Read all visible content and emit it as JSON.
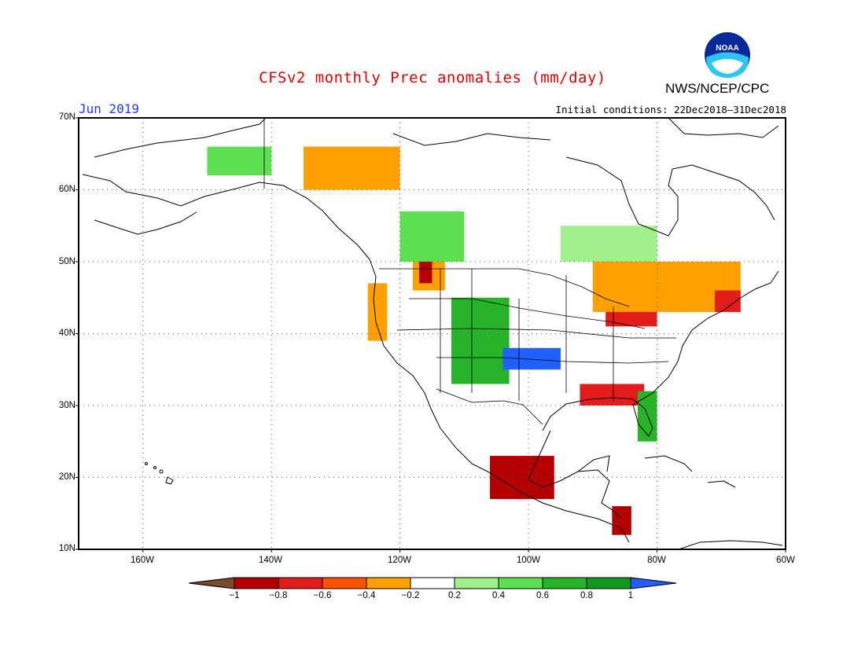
{
  "header": {
    "title": "CFSv2 monthly Prec anomalies (mm/day)",
    "agency": "NWS/NCEP/CPC",
    "valid_month": "Jun 2019",
    "initial_conditions": "Initial conditions: 22Dec2018–31Dec2018",
    "logo_text": "NOAA"
  },
  "map": {
    "lat_labels": [
      "70N",
      "60N",
      "50N",
      "40N",
      "30N",
      "20N",
      "10N"
    ],
    "lon_labels": [
      "160W",
      "140W",
      "120W",
      "100W",
      "80W",
      "60W"
    ]
  },
  "colorbar": {
    "labels": [
      "−1",
      "−0.8",
      "−0.6",
      "−0.4",
      "−0.2",
      "0.2",
      "0.4",
      "0.6",
      "0.8",
      "1"
    ],
    "colors": [
      "#7a4a30",
      "#b40000",
      "#e21b1b",
      "#ff5000",
      "#ffa000",
      "#ffffff",
      "#a0f08c",
      "#5ce050",
      "#28b428",
      "#0f9a1e",
      "#2060ff"
    ]
  },
  "anomalies": [
    {
      "region": "Pacific Northwest coast",
      "lat": [
        39,
        47
      ],
      "lon": [
        -125,
        -122
      ],
      "color": "#ffa000"
    },
    {
      "region": "Northern Idaho / Montana",
      "lat": [
        46,
        50
      ],
      "lon": [
        -118,
        -113
      ],
      "color": "#ffa000"
    },
    {
      "region": "Northern Idaho core",
      "lat": [
        47,
        50
      ],
      "lon": [
        -117,
        -115
      ],
      "color": "#b40000"
    },
    {
      "region": "Central Rockies",
      "lat": [
        33,
        45
      ],
      "lon": [
        -112,
        -103
      ],
      "color": "#28b428"
    },
    {
      "region": "Southern Plains",
      "lat": [
        35,
        38
      ],
      "lon": [
        -104,
        -95
      ],
      "color": "#2060ff"
    },
    {
      "region": "Great Lakes",
      "lat": [
        41,
        44
      ],
      "lon": [
        -88,
        -80
      ],
      "color": "#e21b1b"
    },
    {
      "region": "Southern Ontario / Quebec",
      "lat": [
        43,
        50
      ],
      "lon": [
        -90,
        -67
      ],
      "color": "#ffa000"
    },
    {
      "region": "New England",
      "lat": [
        43,
        46
      ],
      "lon": [
        -71,
        -67
      ],
      "color": "#e21b1b"
    },
    {
      "region": "Gulf Coast",
      "lat": [
        30,
        33
      ],
      "lon": [
        -92,
        -82
      ],
      "color": "#e21b1b"
    },
    {
      "region": "Florida",
      "lat": [
        25,
        32
      ],
      "lon": [
        -83,
        -80
      ],
      "color": "#28b428"
    },
    {
      "region": "Southern Mexico",
      "lat": [
        17,
        23
      ],
      "lon": [
        -106,
        -96
      ],
      "color": "#b40000"
    },
    {
      "region": "Central America",
      "lat": [
        12,
        16
      ],
      "lon": [
        -87,
        -84
      ],
      "color": "#b40000"
    },
    {
      "region": "Canadian Prairies",
      "lat": [
        50,
        57
      ],
      "lon": [
        -120,
        -110
      ],
      "color": "#5ce050"
    },
    {
      "region": "Hudson Bay south",
      "lat": [
        50,
        55
      ],
      "lon": [
        -95,
        -80
      ],
      "color": "#a0f08c"
    },
    {
      "region": "Alaska interior",
      "lat": [
        62,
        66
      ],
      "lon": [
        -150,
        -140
      ],
      "color": "#5ce050"
    },
    {
      "region": "Northern Canada",
      "lat": [
        60,
        66
      ],
      "lon": [
        -135,
        -120
      ],
      "color": "#ffa000"
    }
  ]
}
